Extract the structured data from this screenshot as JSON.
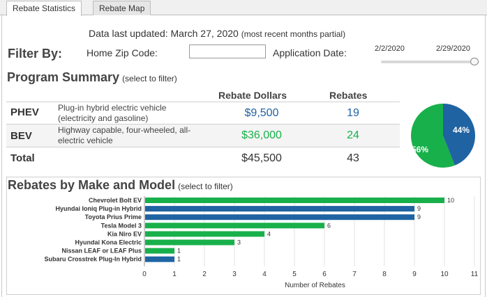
{
  "tabs": [
    {
      "label": "Rebate Statistics",
      "active": true
    },
    {
      "label": "Rebate Map",
      "active": false
    }
  ],
  "header": {
    "updated_text": "Data last updated: March 27, 2020",
    "updated_note": "(most recent months partial)"
  },
  "filters": {
    "title": "Filter By:",
    "zip_label": "Home Zip Code:",
    "zip_value": "",
    "date_label": "Application Date:",
    "date_start": "2/2/2020",
    "date_end": "2/29/2020"
  },
  "summary": {
    "title": "Program Summary",
    "subtitle": "(select to filter)",
    "col_dollars": "Rebate Dollars",
    "col_rebates": "Rebates",
    "rows": [
      {
        "name": "PHEV",
        "desc": "Plug-in hybrid electric vehicle (electricity and gasoline)",
        "dollars": "$9,500",
        "rebates": "19"
      },
      {
        "name": "BEV",
        "desc": "Highway capable, four-wheeled, all-electric vehicle",
        "dollars": "$36,000",
        "rebates": "24"
      },
      {
        "name": "Total",
        "desc": "",
        "dollars": "$45,500",
        "rebates": "43"
      }
    ],
    "pie": {
      "bev_pct": "56%",
      "phev_pct": "44%",
      "bev_share": 0.56,
      "phev_share": 0.44
    }
  },
  "colors": {
    "phev": "#1f63a2",
    "bev": "#18b04b",
    "total": "#333333"
  },
  "chart_data": {
    "type": "bar",
    "orientation": "horizontal",
    "title": "Rebates by Make and Model",
    "subtitle": "(select to filter)",
    "xlabel": "Number of Rebates",
    "xlim": [
      0,
      11
    ],
    "xticks": [
      "0",
      "1",
      "2",
      "3",
      "4",
      "5",
      "6",
      "7",
      "8",
      "9",
      "10",
      "11"
    ],
    "grid": true,
    "categories": [
      "Chevrolet Bolt EV",
      "Hyundai Ioniq Plug-in Hybrid",
      "Toyota Prius Prime",
      "Tesla Model 3",
      "Kia Niro EV",
      "Hyundai Kona Electric",
      "Nissan LEAF or LEAF Plus",
      "Subaru Crosstrek Plug-In Hybrid"
    ],
    "values": [
      10,
      9,
      9,
      6,
      4,
      3,
      1,
      1
    ],
    "value_labels": [
      "10",
      "9",
      "9",
      "6",
      "4",
      "3",
      "1",
      "1"
    ],
    "bar_type": [
      "bev",
      "phev",
      "phev",
      "bev",
      "bev",
      "bev",
      "bev",
      "phev"
    ]
  }
}
